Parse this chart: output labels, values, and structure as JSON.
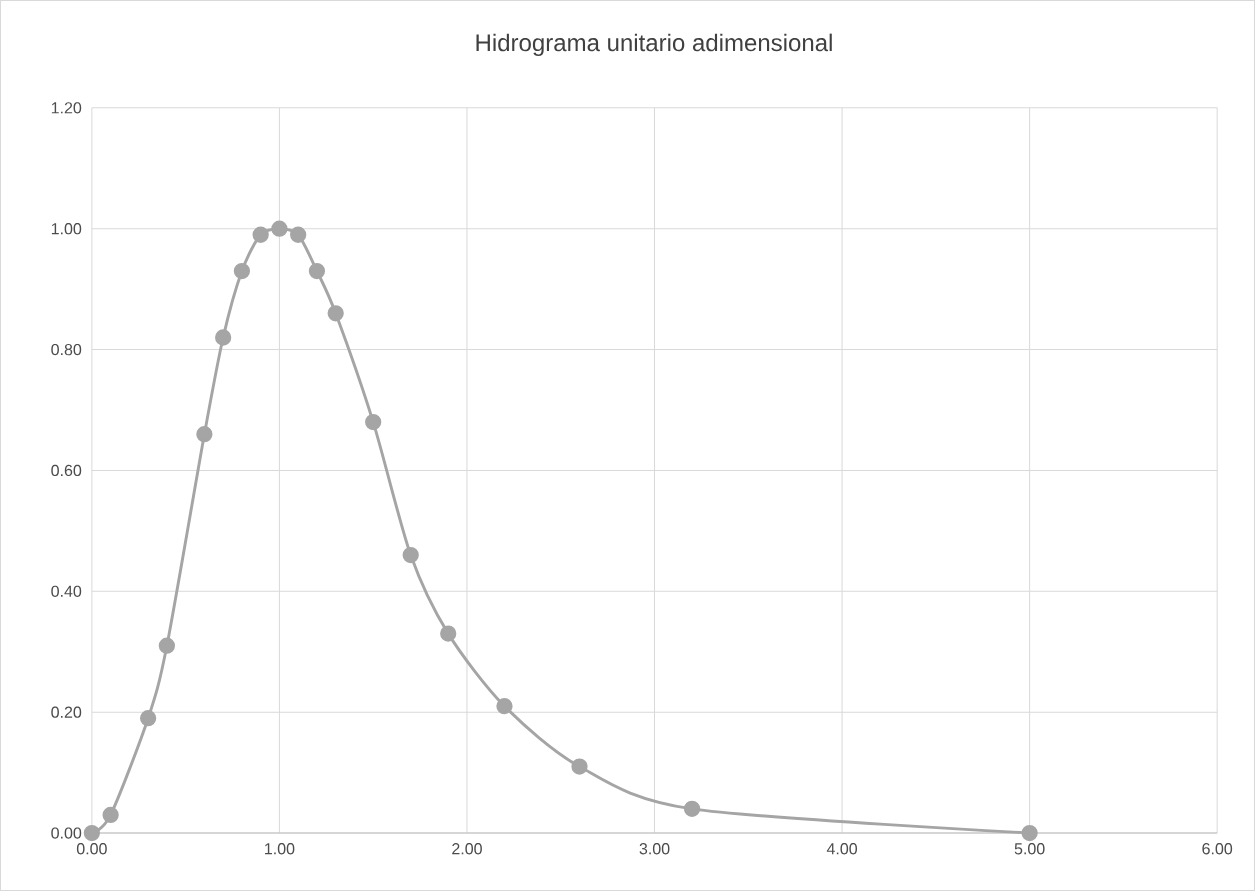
{
  "chart_data": {
    "type": "line",
    "title": "Hidrograma unitario adimensional",
    "x": [
      0,
      0.1,
      0.3,
      0.4,
      0.6,
      0.7,
      0.8,
      0.9,
      1.0,
      1.1,
      1.2,
      1.3,
      1.5,
      1.7,
      1.9,
      2.2,
      2.6,
      3.2,
      5.0
    ],
    "values": [
      0,
      0.03,
      0.19,
      0.31,
      0.66,
      0.82,
      0.93,
      0.99,
      1.0,
      0.99,
      0.93,
      0.86,
      0.68,
      0.46,
      0.33,
      0.21,
      0.11,
      0.04,
      0
    ],
    "color": "#a5a5a5",
    "marker": "circle",
    "grid": true,
    "xlim": [
      0,
      6
    ],
    "ylim": [
      0,
      1.2
    ],
    "xticks": [
      {
        "value": 0,
        "label": "0.00"
      },
      {
        "value": 1,
        "label": "1.00"
      },
      {
        "value": 2,
        "label": "2.00"
      },
      {
        "value": 3,
        "label": "3.00"
      },
      {
        "value": 4,
        "label": "4.00"
      },
      {
        "value": 5,
        "label": "5.00"
      },
      {
        "value": 6,
        "label": "6.00"
      }
    ],
    "yticks": [
      {
        "value": 0,
        "label": "0.00"
      },
      {
        "value": 0.2,
        "label": "0.20"
      },
      {
        "value": 0.4,
        "label": "0.40"
      },
      {
        "value": 0.6,
        "label": "0.60"
      },
      {
        "value": 0.8,
        "label": "0.80"
      },
      {
        "value": 1.0,
        "label": "1.00"
      },
      {
        "value": 1.2,
        "label": "1.20"
      }
    ]
  }
}
